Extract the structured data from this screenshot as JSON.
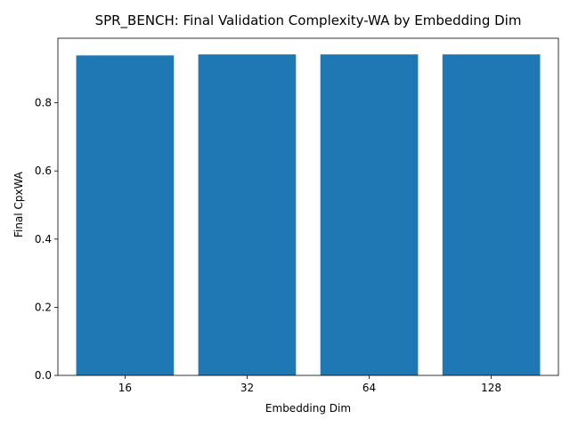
{
  "chart_data": {
    "type": "bar",
    "title": "SPR_BENCH: Final Validation Complexity-WA by Embedding Dim",
    "xlabel": "Embedding Dim",
    "ylabel": "Final CpxWA",
    "categories": [
      "16",
      "32",
      "64",
      "128"
    ],
    "values": [
      0.939,
      0.942,
      0.942,
      0.942
    ],
    "ylim": [
      0,
      0.9894
    ],
    "yticks": [
      0.0,
      0.2,
      0.4,
      0.6,
      0.8
    ],
    "ytick_labels": [
      "0.0",
      "0.2",
      "0.4",
      "0.6",
      "0.8"
    ],
    "bar_color": "#1f77b4",
    "grid": false,
    "legend": "none"
  }
}
